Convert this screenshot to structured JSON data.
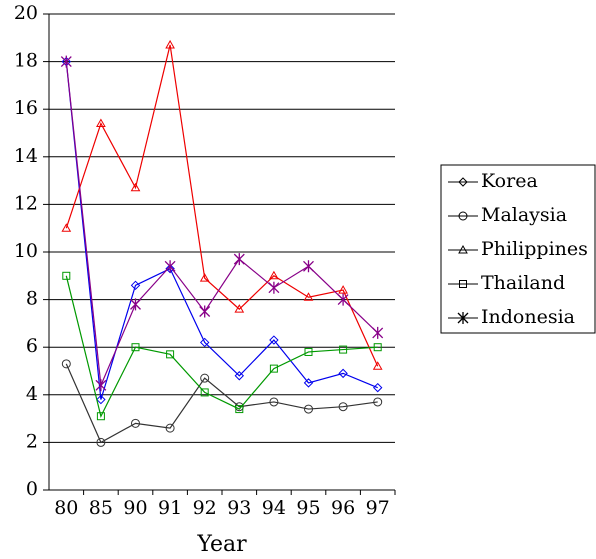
{
  "chart_data": {
    "type": "line",
    "x_label": "Year",
    "categories": [
      "80",
      "85",
      "90",
      "91",
      "92",
      "93",
      "94",
      "95",
      "96",
      "97"
    ],
    "series": [
      {
        "name": "Korea",
        "color": "#0000ee",
        "marker": "diamond",
        "values": [
          18.0,
          3.8,
          8.6,
          9.3,
          6.2,
          4.8,
          6.3,
          4.5,
          4.9,
          4.3
        ]
      },
      {
        "name": "Malaysia",
        "color": "#333333",
        "marker": "circle",
        "values": [
          5.3,
          2.0,
          2.8,
          2.6,
          4.7,
          3.5,
          3.7,
          3.4,
          3.5,
          3.7
        ]
      },
      {
        "name": "Philippines",
        "color": "#ee0000",
        "marker": "triangle",
        "values": [
          11.0,
          15.4,
          12.7,
          18.7,
          8.9,
          7.6,
          9.0,
          8.1,
          8.4,
          5.2
        ]
      },
      {
        "name": "Thailand",
        "color": "#009900",
        "marker": "square",
        "values": [
          9.0,
          3.1,
          6.0,
          5.7,
          4.1,
          3.4,
          5.1,
          5.8,
          5.9,
          6.0
        ]
      },
      {
        "name": "Indonesia",
        "color": "#880088",
        "marker": "star",
        "values": [
          18.0,
          4.4,
          7.8,
          9.4,
          7.5,
          9.7,
          8.5,
          9.4,
          8.0,
          6.6
        ]
      }
    ],
    "ylim": [
      0,
      20
    ],
    "yticks": [
      0,
      2,
      4,
      6,
      8,
      10,
      12,
      14,
      16,
      18,
      20
    ],
    "grid": true,
    "legend": "right"
  }
}
